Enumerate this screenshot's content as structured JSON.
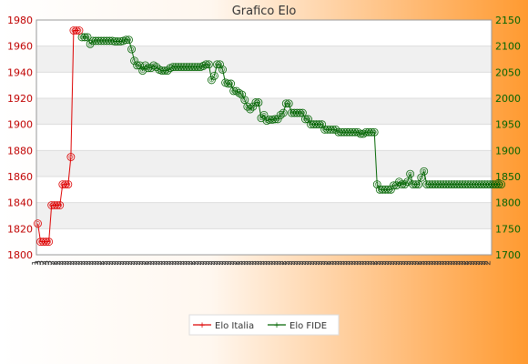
{
  "chart_data": {
    "type": "line",
    "title": "Grafico Elo",
    "legend_position": "bottom",
    "grid": true,
    "y_left": {
      "min": 1800,
      "max": 1980,
      "ticks": [
        "1800",
        "1820",
        "1840",
        "1860",
        "1880",
        "1900",
        "1920",
        "1940",
        "1960",
        "1980"
      ],
      "color": "#cc0000"
    },
    "y_right": {
      "min": 1700,
      "max": 2150,
      "ticks": [
        "1700",
        "1750",
        "1800",
        "1850",
        "1900",
        "1950",
        "2000",
        "2050",
        "2100",
        "2150"
      ],
      "color": "#006400"
    },
    "series": [
      {
        "name": "Elo Italia",
        "axis": "left",
        "color": "#dd0000",
        "values": [
          1824,
          1810,
          1810,
          1810,
          1810,
          1838,
          1838,
          1838,
          1838,
          1854,
          1854,
          1854,
          1875,
          1972,
          1972,
          1972
        ]
      },
      {
        "name": "Elo FIDE",
        "axis": "right",
        "color": "#006400",
        "values": [
          2117,
          2117,
          2117,
          2104,
          2110,
          2110,
          2110,
          2110,
          2110,
          2110,
          2110,
          2110,
          2109,
          2109,
          2109,
          2110,
          2112,
          2112,
          2094,
          2072,
          2063,
          2063,
          2053,
          2063,
          2058,
          2058,
          2063,
          2060,
          2055,
          2053,
          2053,
          2053,
          2058,
          2060,
          2060,
          2060,
          2060,
          2060,
          2060,
          2060,
          2060,
          2060,
          2060,
          2060,
          2062,
          2065,
          2065,
          2035,
          2043,
          2065,
          2065,
          2055,
          2030,
          2028,
          2028,
          2014,
          2014,
          2010,
          2007,
          1997,
          1984,
          1979,
          1984,
          1992,
          1992,
          1962,
          1968,
          1957,
          1959,
          1959,
          1960,
          1960,
          1968,
          1972,
          1990,
          1990,
          1972,
          1972,
          1972,
          1972,
          1972,
          1960,
          1960,
          1950,
          1950,
          1950,
          1950,
          1950,
          1940,
          1940,
          1940,
          1940,
          1940,
          1935,
          1935,
          1935,
          1935,
          1935,
          1935,
          1935,
          1935,
          1932,
          1932,
          1935,
          1935,
          1935,
          1935,
          1835,
          1825,
          1825,
          1825,
          1825,
          1825,
          1833,
          1833,
          1840,
          1835,
          1835,
          1840,
          1855,
          1835,
          1835,
          1835,
          1848,
          1860,
          1835,
          1835,
          1835,
          1835,
          1835,
          1835,
          1835,
          1835,
          1835,
          1835,
          1835,
          1835,
          1835,
          1835,
          1835,
          1835,
          1835,
          1835,
          1835,
          1835,
          1835,
          1835,
          1835,
          1835,
          1835,
          1835,
          1835,
          1835
        ]
      }
    ],
    "x_tick_labels": [
      "1",
      "3",
      "3",
      "2",
      "3",
      "3",
      "2",
      "2",
      "2",
      "2",
      "2",
      "2",
      "2",
      "2",
      "2",
      "2",
      "2",
      "2",
      "2",
      "2",
      "2",
      "2",
      "2",
      "2",
      "2",
      "2",
      "2",
      "2",
      "2",
      "2",
      "2",
      "2",
      "2",
      "2",
      "2",
      "2",
      "2",
      "2",
      "2",
      "2",
      "2",
      "2",
      "2",
      "2",
      "2",
      "2",
      "2",
      "2",
      "2",
      "2",
      "2",
      "2",
      "2",
      "2",
      "2",
      "2",
      "2",
      "2",
      "2",
      "2",
      "2",
      "2",
      "2",
      "2",
      "2",
      "2",
      "2",
      "2",
      "2",
      "2",
      "2",
      "2",
      "2",
      "2",
      "2",
      "2",
      "2",
      "2",
      "2",
      "2",
      "2",
      "2",
      "2",
      "2",
      "2",
      "2",
      "2",
      "2",
      "2",
      "2",
      "2",
      "2",
      "2",
      "2",
      "2",
      "2",
      "2",
      "2",
      "2",
      "2",
      "2",
      "2",
      "2",
      "2",
      "2",
      "2",
      "2",
      "2",
      "2",
      "2",
      "2",
      "2",
      "2",
      "2",
      "2",
      "2",
      "2",
      "2",
      "2",
      "2",
      "2",
      "2",
      "2",
      "2",
      "2",
      "2",
      "2",
      "2",
      "2",
      "2",
      "2",
      "2",
      "2",
      "2",
      "2",
      "2",
      "2",
      "2",
      "2",
      "2",
      "2",
      "2",
      "2",
      "2",
      "2",
      "2",
      "2",
      "2",
      "2",
      "2",
      "2",
      "2",
      "2",
      "2",
      "2",
      "2",
      "2",
      "2",
      "2",
      "2",
      "2",
      "2",
      "2",
      "2",
      "2"
    ]
  }
}
